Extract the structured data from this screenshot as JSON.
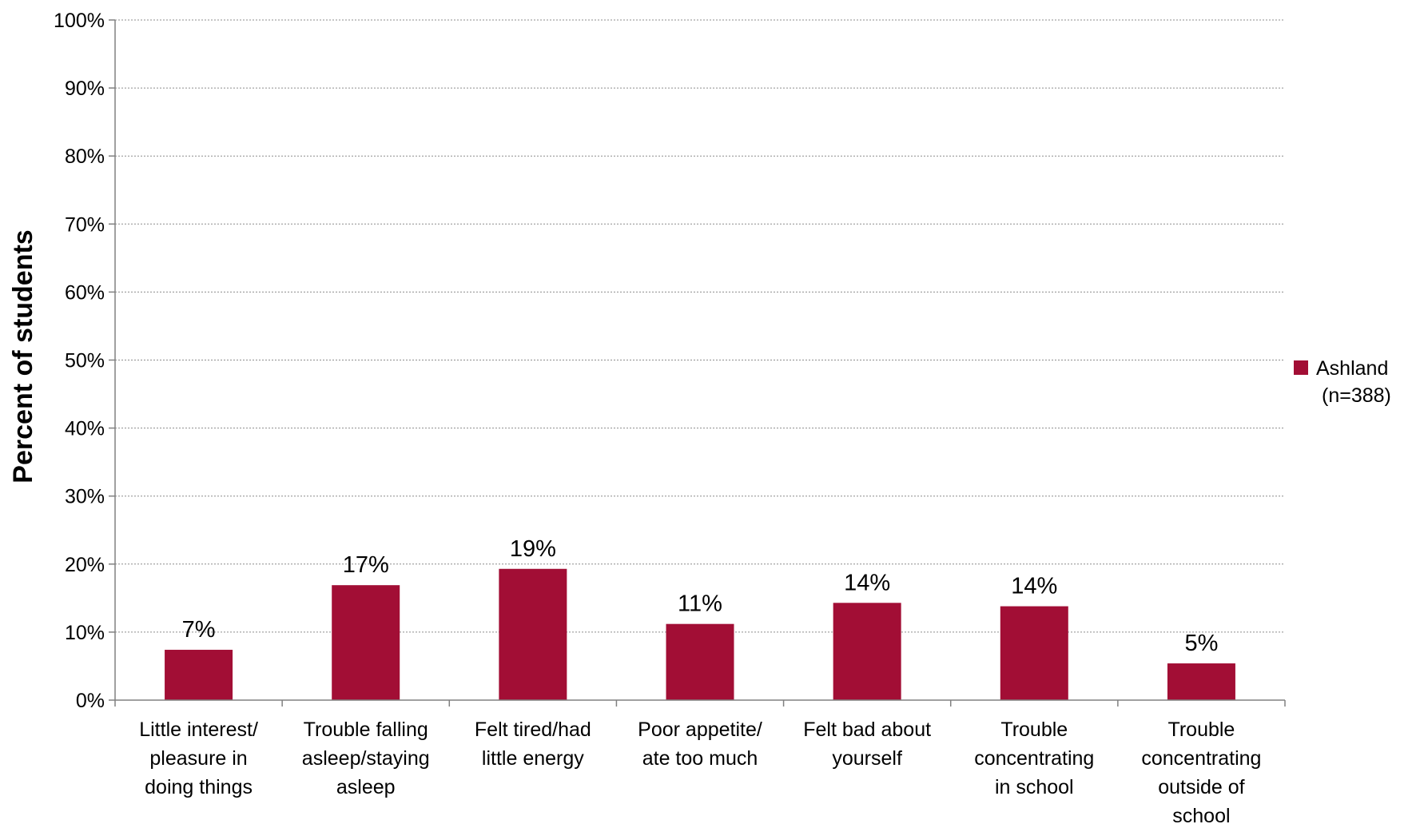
{
  "chart_data": {
    "type": "bar",
    "ylabel": "Percent of students",
    "xlabel": "",
    "ylim": [
      0,
      100
    ],
    "yticks": [
      "0%",
      "10%",
      "20%",
      "30%",
      "40%",
      "50%",
      "60%",
      "70%",
      "80%",
      "90%",
      "100%"
    ],
    "grid": true,
    "legend_position": "right",
    "categories": [
      [
        "Little interest/",
        "pleasure in",
        "doing things"
      ],
      [
        "Trouble falling",
        "asleep/staying",
        "asleep"
      ],
      [
        "Felt tired/had",
        "little energy"
      ],
      [
        "Poor appetite/",
        "ate too much"
      ],
      [
        "Felt bad about",
        "yourself"
      ],
      [
        "Trouble",
        "concentrating",
        "in school"
      ],
      [
        "Trouble",
        "concentrating",
        "outside of",
        "school"
      ]
    ],
    "series": [
      {
        "name": [
          "Ashland",
          "(n=388)"
        ],
        "color": "#a20e35",
        "values": [
          7.4,
          16.9,
          19.3,
          11.2,
          14.3,
          13.8,
          5.4
        ],
        "labels": [
          "7%",
          "17%",
          "19%",
          "11%",
          "14%",
          "14%",
          "5%"
        ]
      }
    ]
  }
}
